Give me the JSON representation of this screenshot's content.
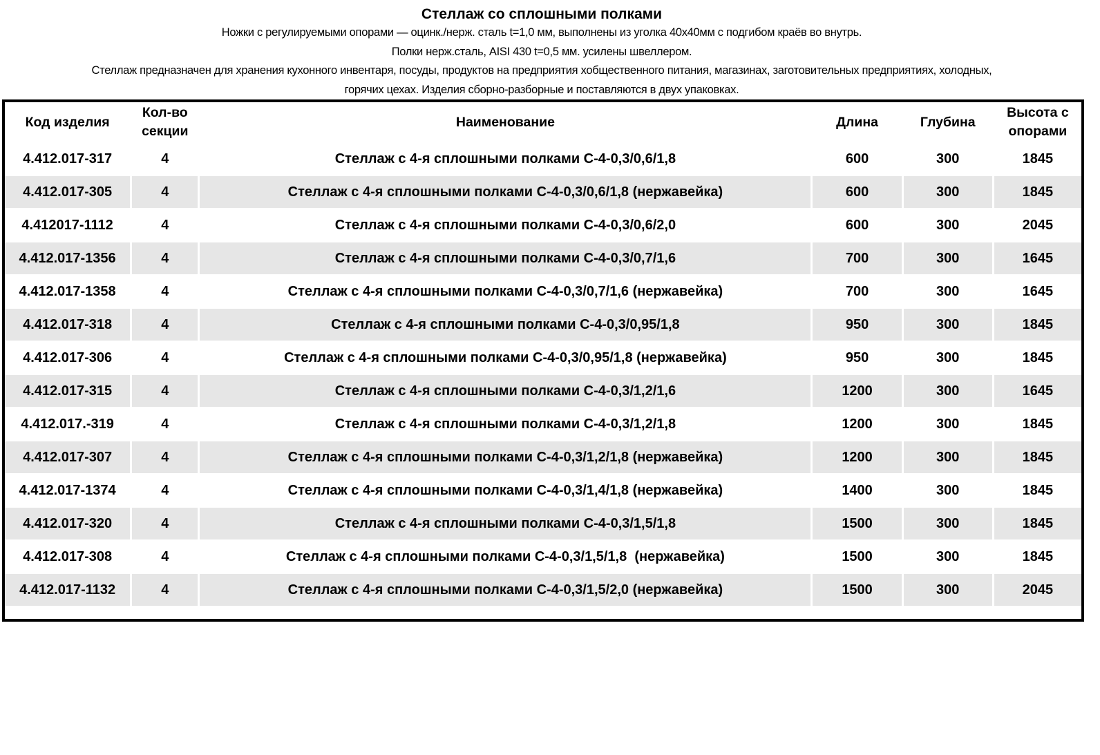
{
  "title": "Стеллаж со сплошными полками",
  "description": [
    "Ножки с регулируемыми опорами — оцинк./нерж. сталь t=1,0 мм, выполнены из уголка 40х40мм с подгибом краёв во внутрь.",
    "Полки нерж.сталь, AISI 430 t=0,5 мм. усилены швеллером.",
    "Стеллаж предназначен для хранения кухонного инвентаря, посуды, продуктов на предприятия хобщественного питания, магазинах, заготовительных предприятиях, холодных,",
    "горячих цехах. Изделия сборно-разборные и поставляются в двух упаковках."
  ],
  "table": {
    "headers": [
      "Код изделия",
      "Кол-во секции",
      "Наименование",
      "Длина",
      "Глубина",
      "Высота с опорами"
    ],
    "rows": [
      [
        "4.412.017-317",
        "4",
        "Стеллаж с 4-я сплошными полками С-4-0,3/0,6/1,8",
        "600",
        "300",
        "1845"
      ],
      [
        "4.412.017-305",
        "4",
        "Стеллаж с 4-я сплошными полками С-4-0,3/0,6/1,8 (нержавейка)",
        "600",
        "300",
        "1845"
      ],
      [
        "4.412017-1112",
        "4",
        "Стеллаж с 4-я сплошными полками С-4-0,3/0,6/2,0",
        "600",
        "300",
        "2045"
      ],
      [
        "4.412.017-1356",
        "4",
        "Стеллаж с 4-я сплошными полками С-4-0,3/0,7/1,6",
        "700",
        "300",
        "1645"
      ],
      [
        "4.412.017-1358",
        "4",
        "Стеллаж с 4-я сплошными полками С-4-0,3/0,7/1,6 (нержавейка)",
        "700",
        "300",
        "1645"
      ],
      [
        "4.412.017-318",
        "4",
        "Стеллаж с 4-я сплошными полками С-4-0,3/0,95/1,8",
        "950",
        "300",
        "1845"
      ],
      [
        "4.412.017-306",
        "4",
        "Стеллаж с 4-я сплошными полками С-4-0,3/0,95/1,8 (нержавейка)",
        "950",
        "300",
        "1845"
      ],
      [
        "4.412.017-315",
        "4",
        "Стеллаж с 4-я сплошными полками С-4-0,3/1,2/1,6",
        "1200",
        "300",
        "1645"
      ],
      [
        "4.412.017.-319",
        "4",
        "Стеллаж с 4-я сплошными полками С-4-0,3/1,2/1,8",
        "1200",
        "300",
        "1845"
      ],
      [
        "4.412.017-307",
        "4",
        "Стеллаж с 4-я сплошными полками С-4-0,3/1,2/1,8 (нержавейка)",
        "1200",
        "300",
        "1845"
      ],
      [
        "4.412.017-1374",
        "4",
        "Стеллаж с 4-я сплошными полками С-4-0,3/1,4/1,8 (нержавейка)",
        "1400",
        "300",
        "1845"
      ],
      [
        "4.412.017-320",
        "4",
        "Стеллаж с 4-я сплошными полками С-4-0,3/1,5/1,8",
        "1500",
        "300",
        "1845"
      ],
      [
        "4.412.017-308",
        "4",
        "Стеллаж с 4-я сплошными полками С-4-0,3/1,5/1,8  (нержавейка)",
        "1500",
        "300",
        "1845"
      ],
      [
        "4.412.017-1132",
        "4",
        "Стеллаж с 4-я сплошными полками С-4-0,3/1,5/2,0 (нержавейка)",
        "1500",
        "300",
        "2045"
      ]
    ]
  },
  "colors": {
    "alt_row": "#e6e6e6",
    "border": "#000000"
  }
}
